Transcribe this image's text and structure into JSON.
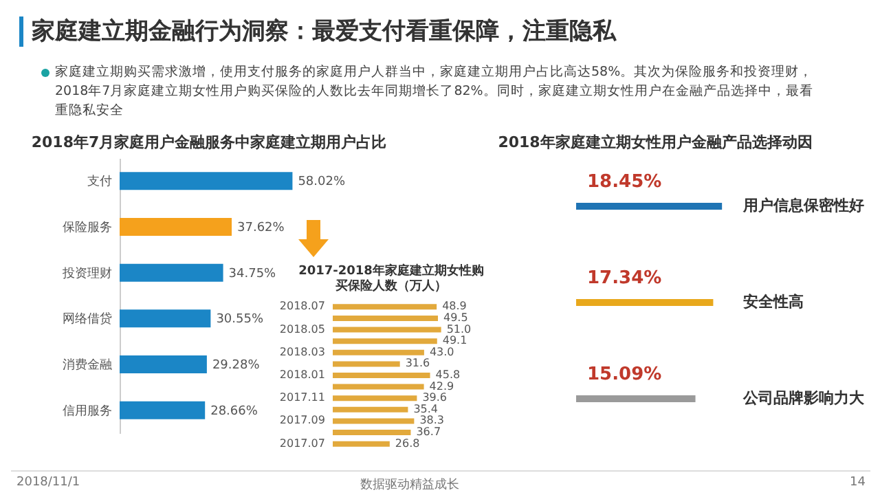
{
  "chart_data": [
    {
      "type": "other",
      "title": "家庭建立期金融行为洞察：最爱支付看重保障，注重隐私",
      "subtitle": "家庭建立期购买需求激增，使用支付服务的家庭用户人群当中，家庭建立期用户占比高达58%。其次为保险服务和投资理财，2018年7月家庭建立期女性用户购买保险的人数比去年同期增长了82%。同时，家庭建立期女性用户在金融产品选择中，最看重隐私安全",
      "annotations": [
        "2018/11/1",
        "数据驱动精益成长",
        "14"
      ]
    },
    {
      "type": "bar",
      "orientation": "horizontal",
      "title": "2018年7月家庭用户金融服务中家庭建立期用户占比",
      "categories": [
        "支付",
        "保险服务",
        "投资理财",
        "网络借贷",
        "消费金融",
        "信用服务"
      ],
      "values": [
        58.02,
        37.62,
        34.75,
        30.55,
        29.28,
        28.66
      ],
      "value_labels": [
        "58.02%",
        "37.62%",
        "34.75%",
        "30.55%",
        "29.28%",
        "28.66%"
      ],
      "colors": [
        "#1b86c6",
        "#f5a11c",
        "#1b86c6",
        "#1b86c6",
        "#1b86c6",
        "#1b86c6"
      ]
    },
    {
      "type": "bar",
      "orientation": "horizontal",
      "title": "2017-2018年家庭建立期女性购买保险人数（万人）",
      "categories": [
        "2018.07",
        null,
        "2018.05",
        null,
        "2018.03",
        null,
        "2018.01",
        null,
        "2017.11",
        null,
        "2017.09",
        null,
        "2017.07"
      ],
      "values": [
        48.9,
        49.5,
        51.0,
        49.1,
        43.0,
        31.6,
        45.8,
        42.9,
        39.6,
        35.4,
        38.3,
        36.7,
        26.8
      ],
      "value_labels": [
        "48.9",
        "49.5",
        "51.0",
        "49.1",
        "43.0",
        "31.6",
        "45.8",
        "42.9",
        "39.6",
        "35.4",
        "38.3",
        "36.7",
        "26.8"
      ],
      "color": "#e2a93c"
    },
    {
      "type": "bar",
      "orientation": "horizontal",
      "title": "2018年家庭建立期女性用户金融产品选择动因",
      "categories": [
        "用户信息保密性好",
        "安全性高",
        "公司品牌影响力大"
      ],
      "values": [
        18.45,
        17.34,
        15.09
      ],
      "value_labels": [
        "18.45%",
        "17.34%",
        "15.09%"
      ],
      "colors": [
        "#1f74b4",
        "#e8a81c",
        "#9a9a9a"
      ]
    }
  ]
}
